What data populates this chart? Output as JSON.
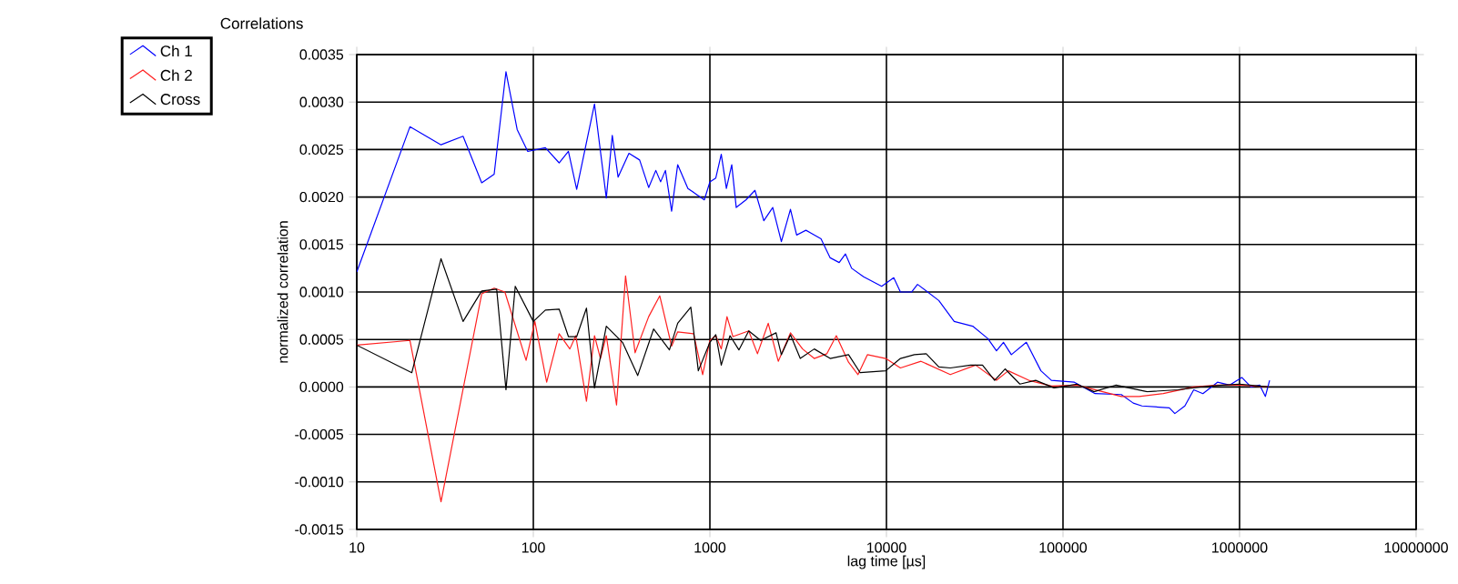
{
  "chart_data": {
    "type": "line",
    "title": "Correlations",
    "xlabel": "lag time [µs]",
    "ylabel": "normalized correlation",
    "log": "x",
    "grid": true,
    "legend": "top left",
    "marker": "none",
    "line_style": "solid",
    "xlim": [
      10,
      10000000
    ],
    "xticks": [
      10,
      100,
      1000,
      10000,
      100000,
      1000000,
      10000000
    ],
    "ylim": [
      -0.0015,
      0.0035
    ],
    "yticks": [
      {
        "value": -0.0015,
        "label": "-0.0015"
      },
      {
        "value": -0.001,
        "label": "-0.0010"
      },
      {
        "value": -0.0005,
        "label": "-0.0005"
      },
      {
        "value": 0,
        "label": "0.0000"
      },
      {
        "value": 0.0005,
        "label": "0.0005"
      },
      {
        "value": 0.001,
        "label": "0.0010"
      },
      {
        "value": 0.0015,
        "label": "0.0015"
      },
      {
        "value": 0.002,
        "label": "0.0020"
      },
      {
        "value": 0.0025,
        "label": "0.0025"
      },
      {
        "value": 0.003,
        "label": "0.0030"
      },
      {
        "value": 0.0035,
        "label": "0.0035"
      }
    ],
    "series": [
      {
        "name": "Ch 1",
        "color": "#0000ff",
        "x": [
          10,
          20,
          30,
          40,
          51,
          60,
          70,
          81,
          93,
          117,
          140,
          158,
          176,
          222,
          259,
          280,
          302,
          348,
          400,
          450,
          494,
          526,
          560,
          607,
          657,
          751,
          930,
          1000,
          1080,
          1160,
          1240,
          1330,
          1410,
          1600,
          1800,
          2020,
          2270,
          2540,
          2860,
          3100,
          3500,
          4260,
          4800,
          5400,
          5860,
          6350,
          7420,
          9400,
          11000,
          12000,
          13900,
          15000,
          19800,
          24200,
          30800,
          37500,
          42000,
          46000,
          51000,
          62000,
          75000,
          86000,
          116000,
          152000,
          214000,
          250000,
          280000,
          400000,
          430000,
          490000,
          550000,
          620000,
          750000,
          880000,
          1030000,
          1160000,
          1300000,
          1400000,
          1480000
        ],
        "values": [
          0.00121,
          0.00274,
          0.00255,
          0.00264,
          0.00215,
          0.00224,
          0.00332,
          0.00271,
          0.00248,
          0.00252,
          0.00236,
          0.00248,
          0.00208,
          0.00298,
          0.00199,
          0.00265,
          0.00221,
          0.00246,
          0.00239,
          0.0021,
          0.00228,
          0.00216,
          0.00228,
          0.00185,
          0.00234,
          0.00209,
          0.00197,
          0.00216,
          0.0022,
          0.00245,
          0.00209,
          0.00234,
          0.00189,
          0.00197,
          0.00207,
          0.00175,
          0.00189,
          0.00153,
          0.00187,
          0.0016,
          0.00165,
          0.00156,
          0.00136,
          0.00131,
          0.0014,
          0.00125,
          0.00116,
          0.00106,
          0.00115,
          0.001,
          0.001,
          0.00108,
          0.00091,
          0.00069,
          0.00064,
          0.00051,
          0.00038,
          0.00047,
          0.00034,
          0.00047,
          0.00017,
          7e-05,
          5e-05,
          -7e-05,
          -8e-05,
          -0.00017,
          -0.0002,
          -0.00022,
          -0.00028,
          -0.0002,
          -3e-05,
          -7e-05,
          5e-05,
          2e-05,
          0.0001,
          0,
          2e-05,
          -0.0001,
          7e-05
        ]
      },
      {
        "name": "Ch 2",
        "color": "#ff2020",
        "x": [
          10,
          20,
          30,
          51,
          60,
          69,
          91,
          102,
          119,
          140,
          161,
          174,
          200,
          222,
          240,
          259,
          296,
          333,
          377,
          450,
          520,
          607,
          657,
          808,
          910,
          1000,
          1080,
          1160,
          1250,
          1350,
          1660,
          1860,
          2140,
          2440,
          2860,
          3350,
          3900,
          4600,
          5200,
          6100,
          6900,
          7800,
          9900,
          12000,
          15700,
          23000,
          32000,
          42000,
          49000,
          64000,
          86000,
          120000,
          214000,
          270000,
          370000,
          550000,
          750000,
          1030000,
          1450000
        ],
        "values": [
          0.00044,
          0.00049,
          -0.00121,
          0.00098,
          0.00104,
          0.001,
          0.00028,
          0.00069,
          5e-05,
          0.00056,
          0.0004,
          0.00054,
          -0.00015,
          0.00054,
          0.0003,
          0.00054,
          -0.00019,
          0.00117,
          0.00036,
          0.00074,
          0.00096,
          0.00043,
          0.00058,
          0.00056,
          0.00013,
          0.00049,
          0.00054,
          0.0004,
          0.00074,
          0.00053,
          0.00059,
          0.00035,
          0.00067,
          0.00027,
          0.00057,
          0.0004,
          0.0003,
          0.00035,
          0.00054,
          0.00026,
          0.00013,
          0.00034,
          0.0003,
          0.0002,
          0.00027,
          0.00013,
          0.00023,
          7e-05,
          0.00017,
          7e-05,
          1e-05,
          2e-05,
          -0.0001,
          -0.0001,
          -7e-05,
          0,
          2e-05,
          2e-05,
          0
        ]
      },
      {
        "name": "Cross",
        "color": "#000000",
        "x": [
          10,
          20.5,
          30,
          40,
          51,
          62,
          70,
          79,
          100,
          117,
          140,
          158,
          176,
          200,
          222,
          259,
          320,
          390,
          480,
          590,
          657,
          780,
          860,
          1000,
          1080,
          1160,
          1300,
          1460,
          1660,
          1940,
          2370,
          2540,
          2860,
          3250,
          3900,
          4800,
          6100,
          7100,
          9900,
          12000,
          14400,
          16800,
          19800,
          23000,
          30000,
          35000,
          41000,
          47000,
          57000,
          70000,
          89000,
          120000,
          150000,
          200000,
          300000,
          450000,
          600000,
          800000,
          1000000,
          1300000,
          1450000
        ],
        "values": [
          0.00044,
          0.00015,
          0.00135,
          0.00069,
          0.00101,
          0.00103,
          -3e-05,
          0.00106,
          0.00069,
          0.00081,
          0.00082,
          0.00053,
          0.00053,
          0.00083,
          -1e-05,
          0.00064,
          0.00047,
          0.00012,
          0.00061,
          0.00039,
          0.00067,
          0.00084,
          0.00017,
          0.00047,
          0.00055,
          0.00023,
          0.00054,
          0.00039,
          0.00059,
          0.00049,
          0.00057,
          0.00034,
          0.00055,
          0.0003,
          0.0004,
          0.0003,
          0.00034,
          0.00015,
          0.00017,
          0.0003,
          0.00034,
          0.00035,
          0.00021,
          0.0002,
          0.00023,
          0.00023,
          7e-05,
          0.00019,
          3e-05,
          7e-05,
          -1e-05,
          3e-05,
          -5e-05,
          2e-05,
          -5e-05,
          -3e-05,
          0,
          2e-05,
          3e-05,
          1e-05,
          0
        ]
      }
    ]
  }
}
